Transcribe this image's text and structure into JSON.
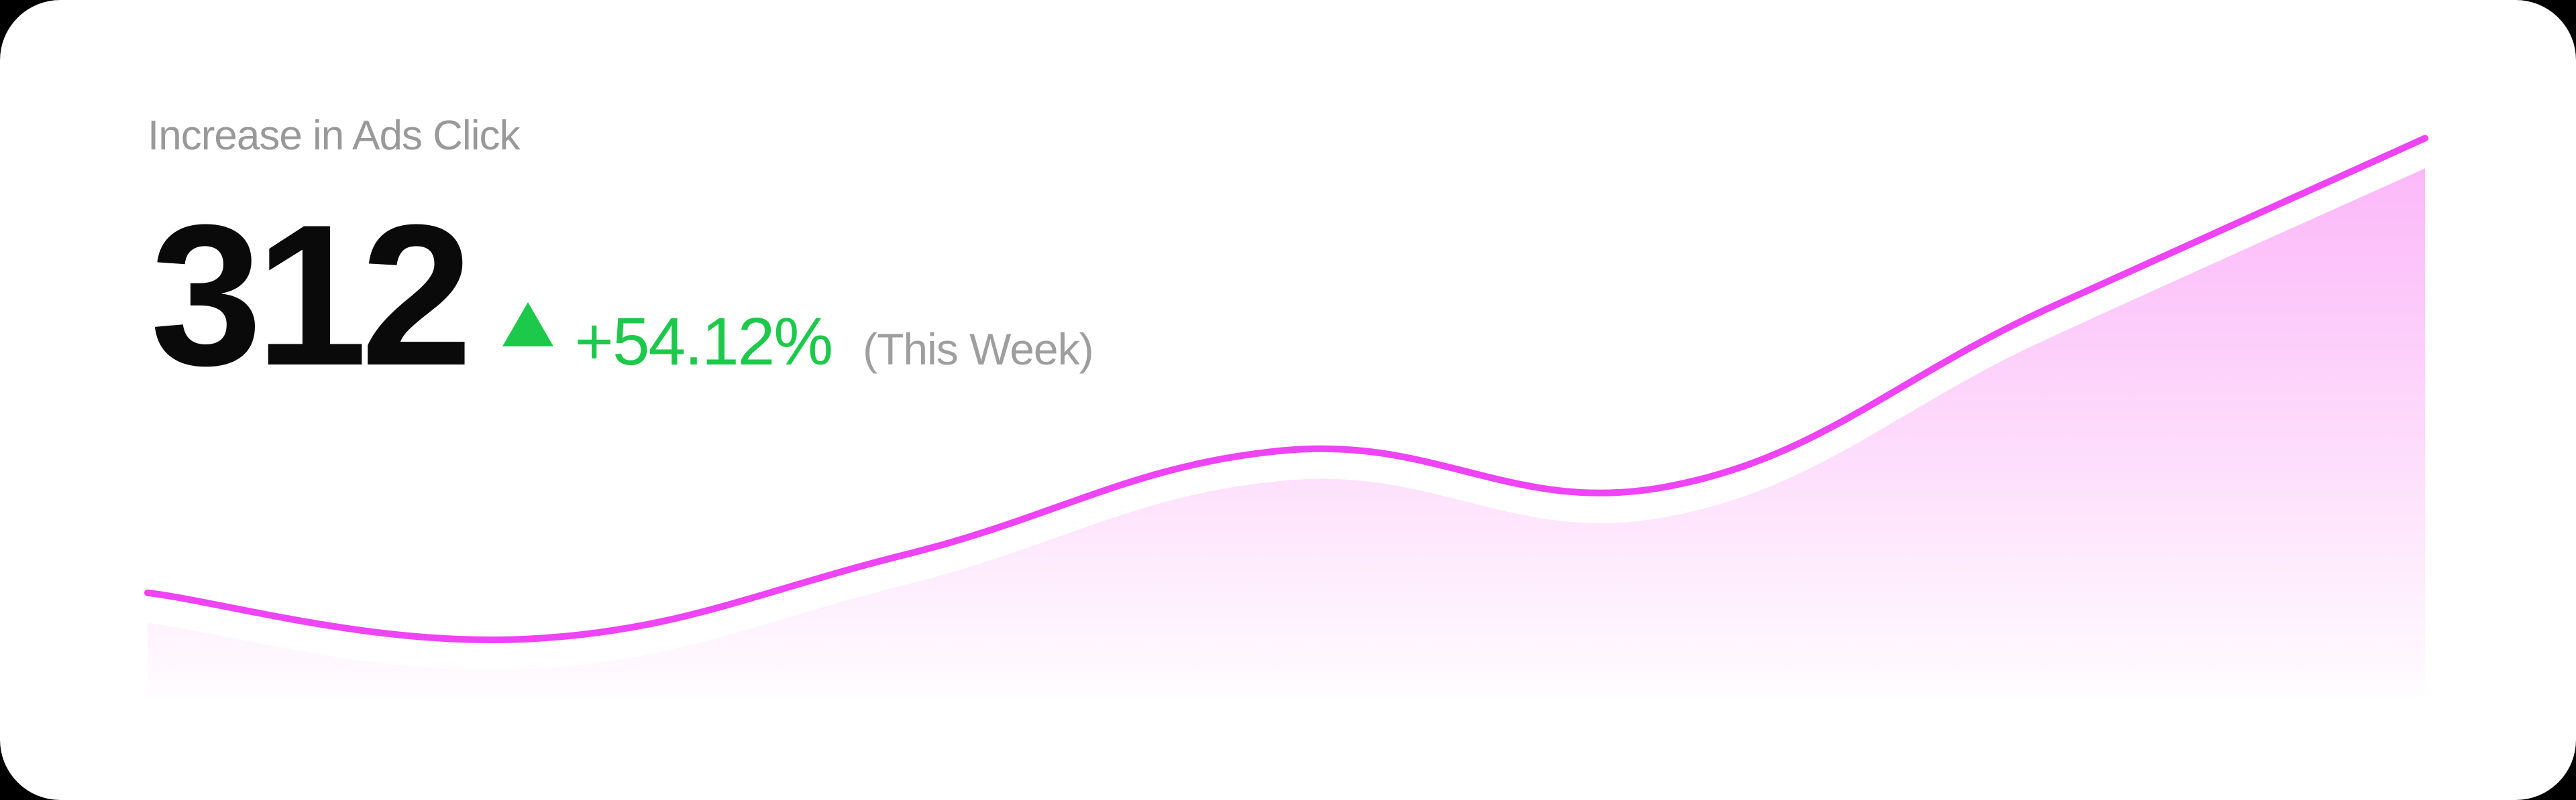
{
  "card": {
    "title": "Increase in Ads Click",
    "value": "312",
    "trend_icon": "up-triangle-icon",
    "change": "+54.12%",
    "period": "(This Week)"
  },
  "colors": {
    "line": "#ee44f5",
    "area": "#fbb4f8",
    "positive": "#1dc94a",
    "title": "#999999",
    "value": "#0a0a0a",
    "period": "#9e9e9e"
  },
  "chart_data": {
    "type": "area",
    "x": [
      0,
      1,
      2,
      3,
      4,
      5,
      6
    ],
    "values": [
      270,
      150,
      370,
      640,
      545,
      1005,
      1450
    ],
    "ylim": [
      0,
      1600
    ],
    "grid": false,
    "legend": "none"
  }
}
